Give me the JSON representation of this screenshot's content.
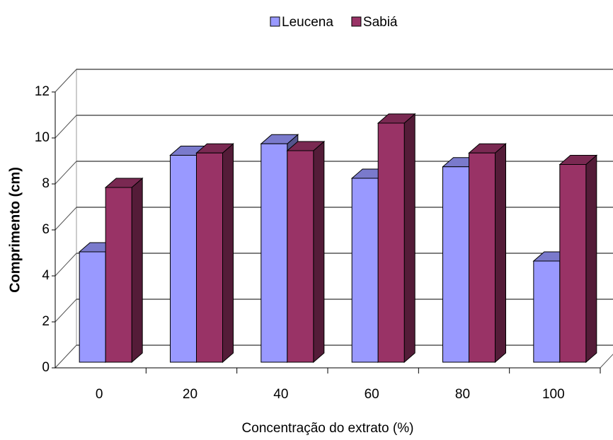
{
  "chart_data": {
    "type": "bar3d",
    "x_label": "Concentração do extrato (%)",
    "y_label": "Comprimento (cm)",
    "categories": [
      "0",
      "20",
      "40",
      "60",
      "80",
      "100"
    ],
    "series": [
      {
        "name": "Leucena",
        "color": "#9999ff",
        "values": [
          4.8,
          9.0,
          9.5,
          8.0,
          8.5,
          4.4
        ]
      },
      {
        "name": "Sabiá",
        "color": "#993366",
        "values": [
          7.6,
          9.1,
          9.2,
          10.4,
          9.1,
          8.6
        ]
      }
    ],
    "ylim": [
      0,
      12
    ],
    "yticks": [
      0,
      2,
      4,
      6,
      8,
      10,
      12
    ],
    "grid": true,
    "legend": "top"
  }
}
